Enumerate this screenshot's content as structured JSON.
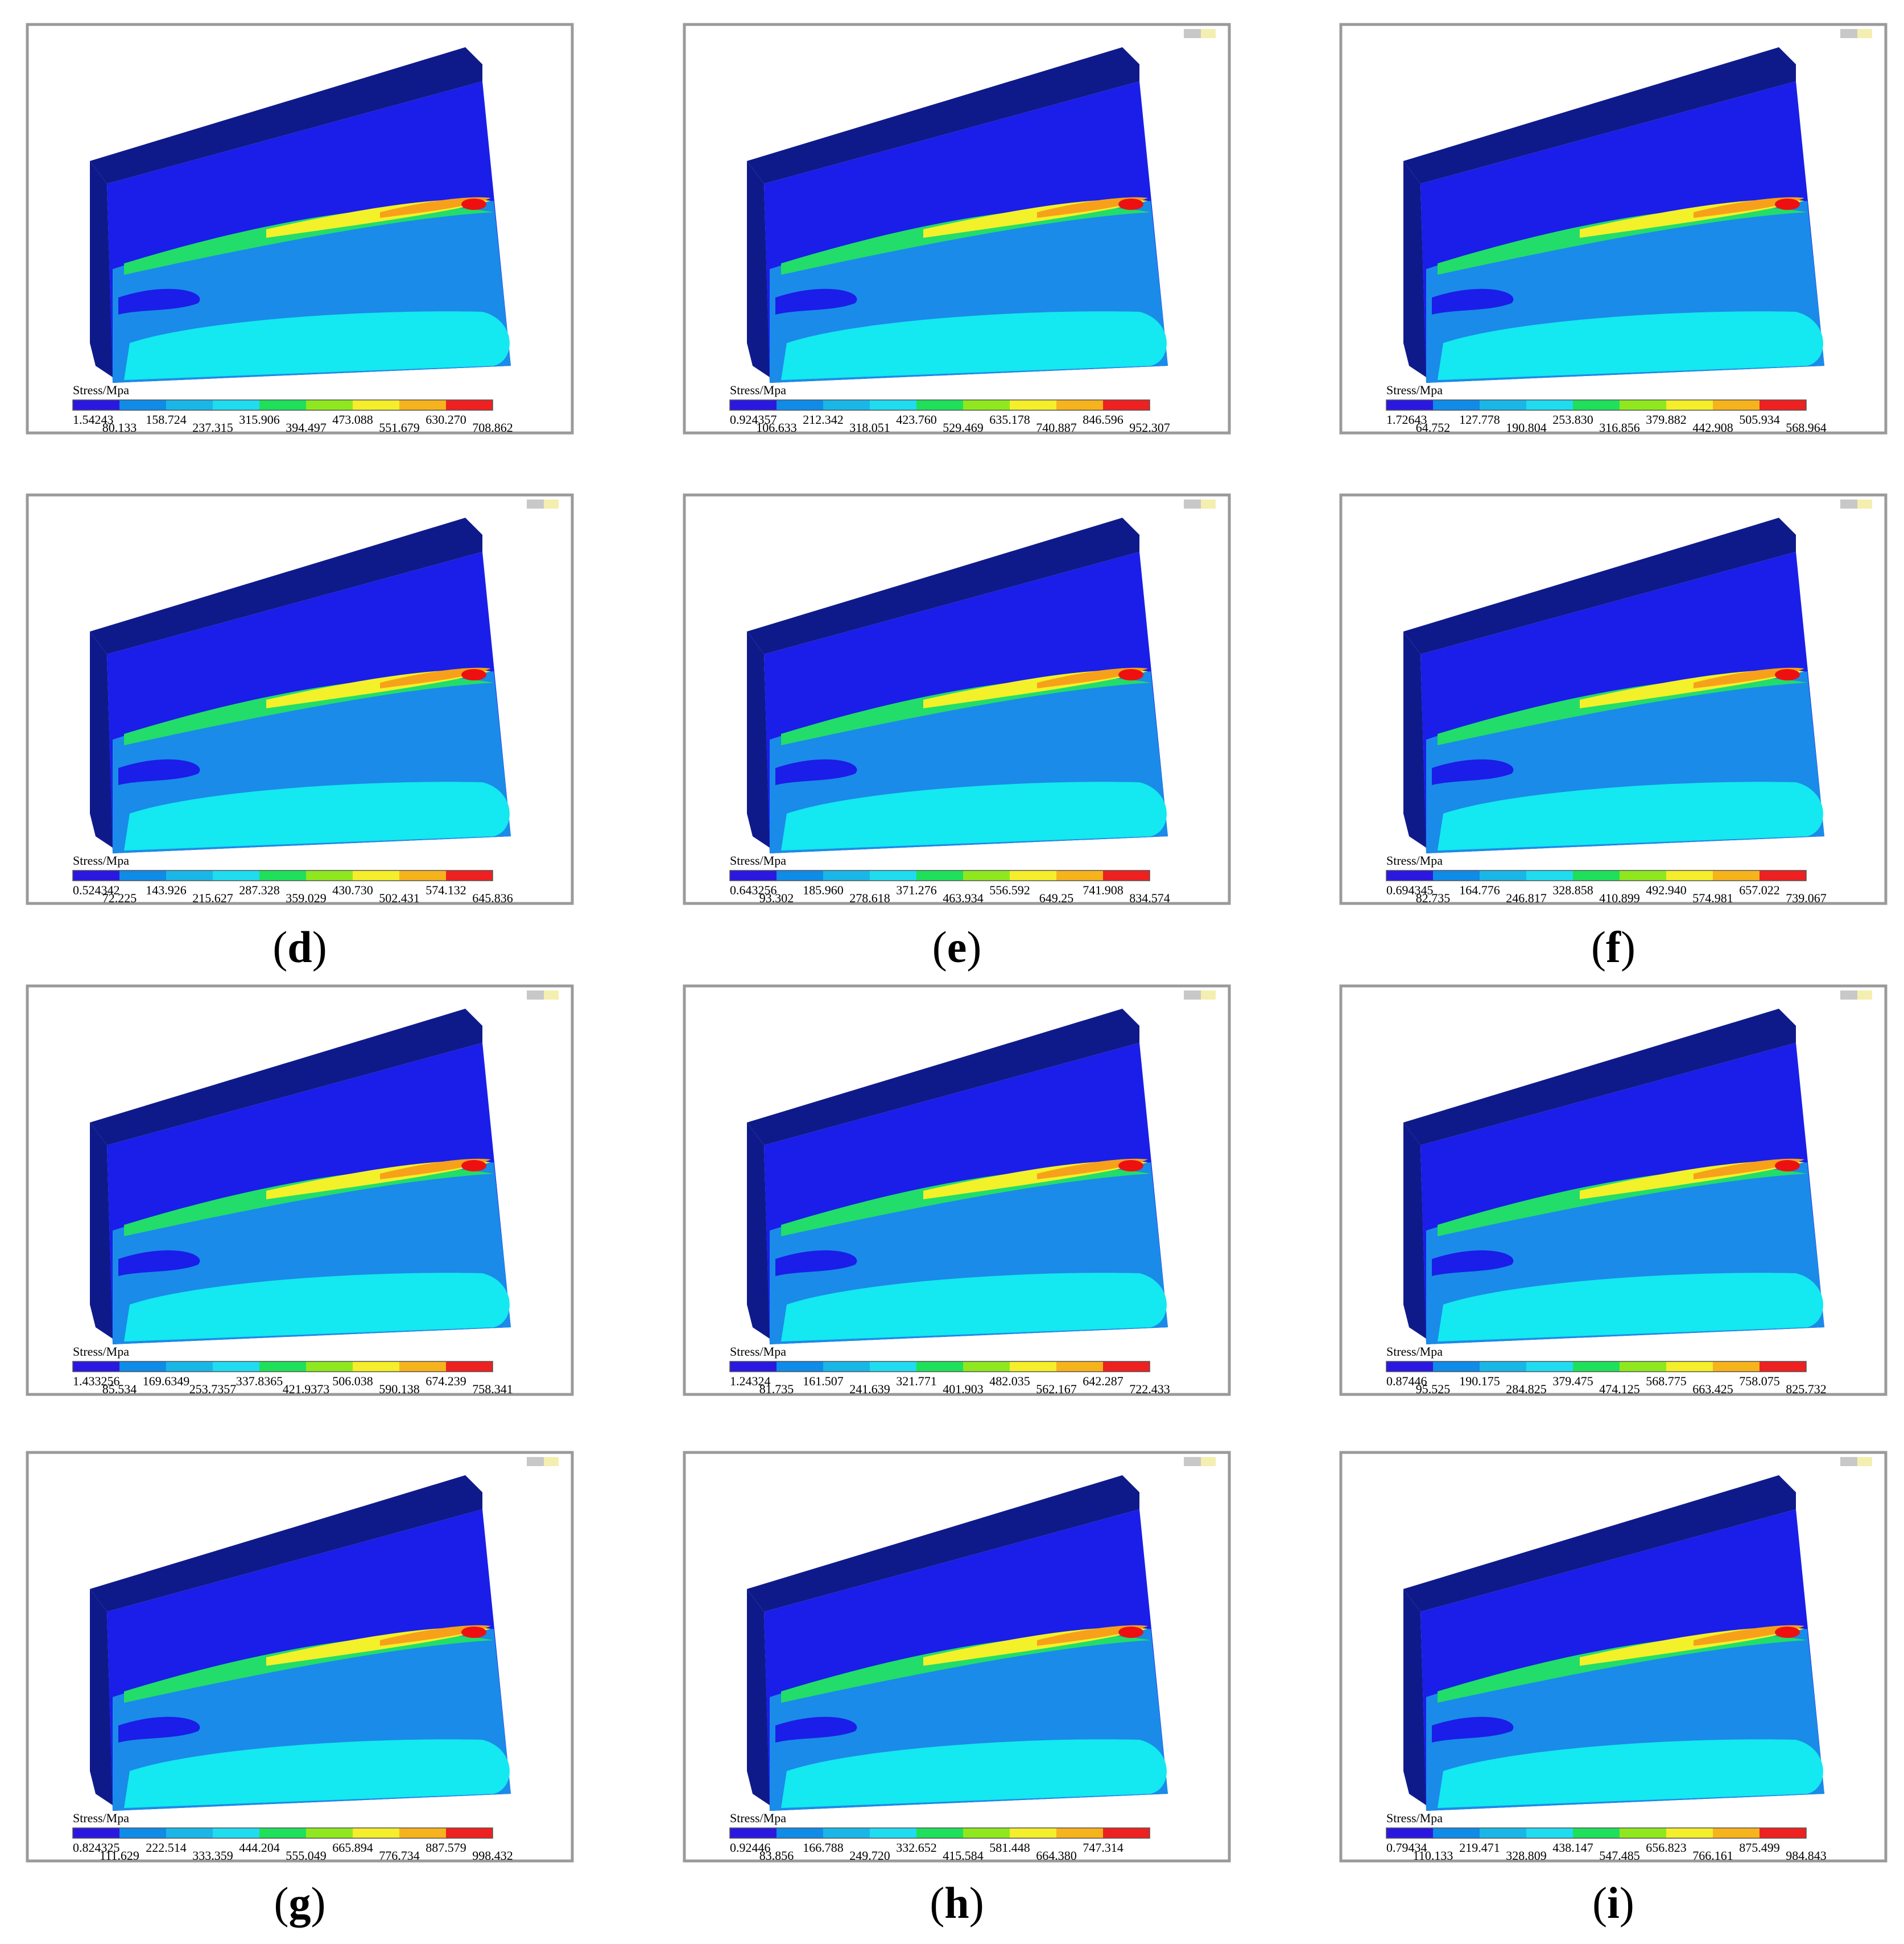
{
  "colors": {
    "legend_bands": [
      "#2a18e0",
      "#0f8be8",
      "#19b7e8",
      "#1fdcf0",
      "#1ee05a",
      "#8fe81e",
      "#f5ee2a",
      "#f7b31c",
      "#ee2020"
    ],
    "frame": "#9a9a9a",
    "dark_blue": "#0f1a8a",
    "model_blue": "#1a1ee8",
    "mid_blue": "#1a8be8",
    "cyan": "#14e8f0",
    "hot_red": "#ee1010",
    "orange": "#f7a11a",
    "yellow": "#f3f12a",
    "green": "#22dd6a"
  },
  "legend_title": "Stress/Mpa",
  "panels": [
    {
      "id": "a",
      "caption": "",
      "ticks": [
        "1.54243",
        "80.133",
        "158.724",
        "237.315",
        "315.906",
        "394.497",
        "473.088",
        "551.679",
        "630.270",
        "708.862"
      ]
    },
    {
      "id": "b",
      "caption": "",
      "ticks": [
        "0.924357",
        "106.633",
        "212.342",
        "318.051",
        "423.760",
        "529.469",
        "635.178",
        "740.887",
        "846.596",
        "952.307"
      ]
    },
    {
      "id": "c",
      "caption": "",
      "ticks": [
        "1.72643",
        "64.752",
        "127.778",
        "190.804",
        "253.830",
        "316.856",
        "379.882",
        "442.908",
        "505.934",
        "568.964"
      ]
    },
    {
      "id": "d",
      "caption": "d",
      "ticks": [
        "0.524342",
        "72.225",
        "143.926",
        "215.627",
        "287.328",
        "359.029",
        "430.730",
        "502.431",
        "574.132",
        "645.836"
      ]
    },
    {
      "id": "e",
      "caption": "e",
      "ticks": [
        "0.643256",
        "93.302",
        "185.960",
        "278.618",
        "371.276",
        "463.934",
        "556.592",
        "649.25",
        "741.908",
        "834.574"
      ]
    },
    {
      "id": "f",
      "caption": "f",
      "ticks": [
        "0.694345",
        "82.735",
        "164.776",
        "246.817",
        "328.858",
        "410.899",
        "492.940",
        "574.981",
        "657.022",
        "739.067"
      ]
    },
    {
      "id": "g1",
      "caption": "",
      "ticks": [
        "1.433256",
        "85.534",
        "169.6349",
        "253.7357",
        "337.8365",
        "421.9373",
        "506.038",
        "590.138",
        "674.239",
        "758.341"
      ]
    },
    {
      "id": "h1",
      "caption": "",
      "ticks": [
        "1.24324",
        "81.735",
        "161.507",
        "241.639",
        "321.771",
        "401.903",
        "482.035",
        "562.167",
        "642.287",
        "722.433"
      ]
    },
    {
      "id": "i1",
      "caption": "",
      "ticks": [
        "0.87446",
        "95.525",
        "190.175",
        "284.825",
        "379.475",
        "474.125",
        "568.775",
        "663.425",
        "758.075",
        "825.732"
      ]
    },
    {
      "id": "g",
      "caption": "g",
      "ticks": [
        "0.824325",
        "111.629",
        "222.514",
        "333.359",
        "444.204",
        "555.049",
        "665.894",
        "776.734",
        "887.579",
        "998.432"
      ]
    },
    {
      "id": "h",
      "caption": "h",
      "ticks": [
        "0.92446",
        "83.856",
        "166.788",
        "249.720",
        "332.652",
        "415.584",
        "581.448",
        "664.380",
        "747.314",
        ""
      ]
    },
    {
      "id": "i",
      "caption": "i",
      "ticks": [
        "0.79434",
        "110.133",
        "219.471",
        "328.809",
        "438.147",
        "547.485",
        "656.823",
        "766.161",
        "875.499",
        "984.843"
      ]
    }
  ]
}
